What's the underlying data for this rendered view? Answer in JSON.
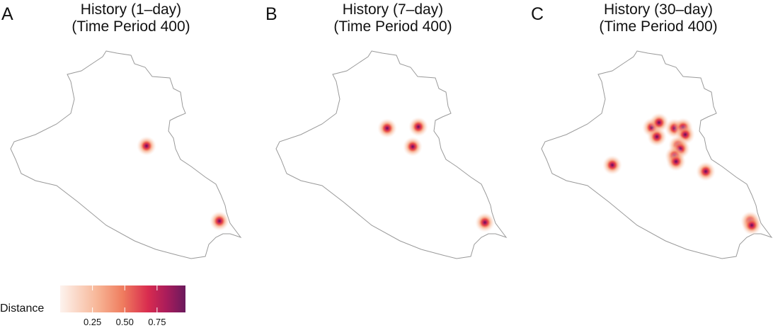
{
  "panels": [
    {
      "letter": "A",
      "title": [
        "History (1–day)",
        "(Time Period 400)"
      ]
    },
    {
      "letter": "B",
      "title": [
        "History (7–day)",
        "(Time Period 400)"
      ]
    },
    {
      "letter": "C",
      "title": [
        "History (30–day)",
        "(Time Period 400)"
      ]
    }
  ],
  "legend": {
    "title": "Distance",
    "range": [
      0,
      0.97
    ],
    "ticks": [
      0.25,
      {
        "value": 0.5,
        "label": "0.50"
      },
      0.75
    ]
  }
}
